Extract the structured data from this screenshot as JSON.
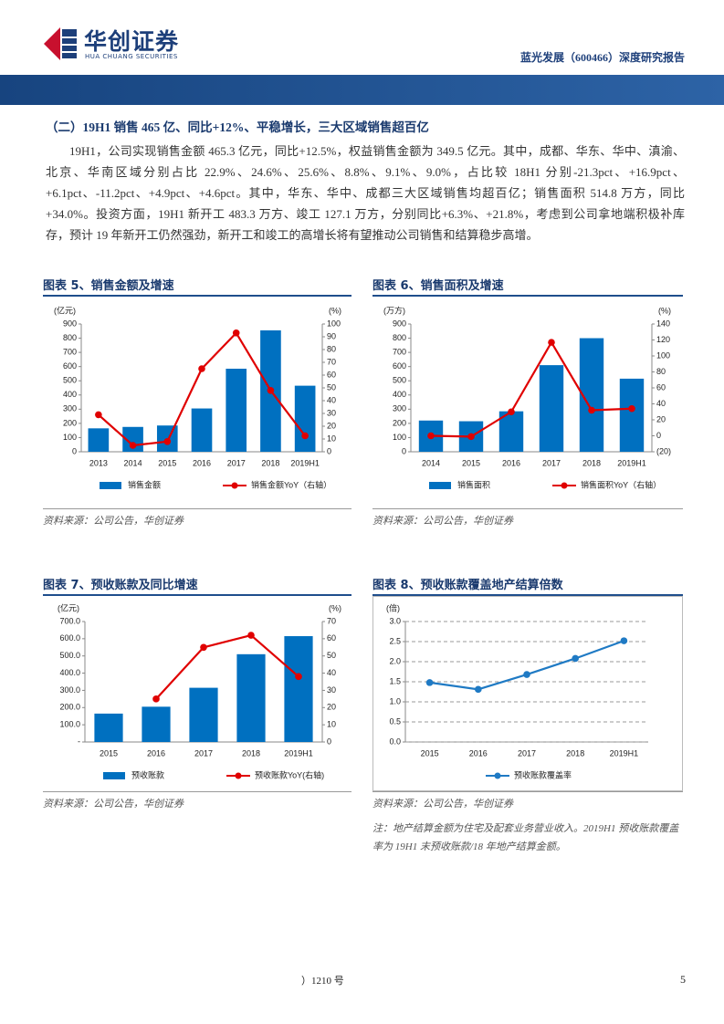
{
  "header": {
    "logo_name": "华创证券",
    "logo_english": "HUA CHUANG SECURITIES",
    "report_title": "蓝光发展（600466）深度研究报告"
  },
  "section": {
    "heading": "（二）19H1 销售 465 亿、同比+12%、平稳增长，三大区域销售超百亿",
    "paragraph": "19H1，公司实现销售金额 465.3 亿元，同比+12.5%，权益销售金额为 349.5 亿元。其中，成都、华东、华中、滇渝、北京、华南区域分别占比 22.9%、24.6%、25.6%、8.8%、9.1%、9.0%，占比较 18H1 分别-21.3pct、+16.9pct、+6.1pct、-11.2pct、+4.9pct、+4.6pct。其中，华东、华中、成都三大区域销售均超百亿；销售面积 514.8 万方，同比+34.0%。投资方面，19H1 新开工 483.3 万方、竣工 127.1 万方，分别同比+6.3%、+21.8%，考虑到公司拿地端积极补库存，预计 19 年新开工仍然强劲，新开工和竣工的高增长将有望推动公司销售和结算稳步高增。"
  },
  "chart_data": [
    {
      "type": "combo",
      "title": "图表 5、销售金额及增速",
      "y_unit": "(亿元)",
      "y2_unit": "(%)",
      "categories": [
        "2013",
        "2014",
        "2015",
        "2016",
        "2017",
        "2018",
        "2019H1"
      ],
      "series": [
        {
          "name": "销售金额",
          "color": "#0070c0",
          "type": "bar",
          "values": [
            165,
            175,
            185,
            305,
            585,
            855,
            465.3
          ]
        },
        {
          "name": "销售金额YoY（右轴）",
          "color": "#e00000",
          "type": "line",
          "axis": "y2",
          "values": [
            29,
            5,
            8,
            65,
            93,
            48,
            12.5
          ]
        }
      ],
      "ylim": [
        0,
        900
      ],
      "yticks": [
        0,
        100,
        200,
        300,
        400,
        500,
        600,
        700,
        800,
        900
      ],
      "y2lim": [
        0,
        100
      ],
      "y2ticks": [
        0,
        10,
        20,
        30,
        40,
        50,
        60,
        70,
        80,
        90,
        100
      ],
      "grid": false,
      "source": "资料来源：公司公告，华创证券"
    },
    {
      "type": "combo",
      "title": "图表 6、销售面积及增速",
      "y_unit": "(万方)",
      "y2_unit": "(%)",
      "categories": [
        "2014",
        "2015",
        "2016",
        "2017",
        "2018",
        "2019H1"
      ],
      "series": [
        {
          "name": "销售面积",
          "color": "#0070c0",
          "type": "bar",
          "values": [
            220,
            215,
            285,
            610,
            800,
            514.8
          ]
        },
        {
          "name": "销售面积YoY（右轴）",
          "color": "#e00000",
          "type": "line",
          "axis": "y2",
          "values": [
            0,
            -1,
            30,
            117,
            32,
            34.0
          ]
        }
      ],
      "ylim": [
        0,
        900
      ],
      "yticks": [
        0,
        100,
        200,
        300,
        400,
        500,
        600,
        700,
        800,
        900
      ],
      "y2lim": [
        -20,
        140
      ],
      "y2ticks": [
        {
          "value": -20,
          "label": "(20)"
        },
        0,
        20,
        40,
        60,
        80,
        100,
        120,
        140
      ],
      "grid": false,
      "source": "资料来源：公司公告，华创证券"
    },
    {
      "type": "combo",
      "title": "图表 7、预收账款及同比增速",
      "y_unit": "(亿元)",
      "y2_unit": "(%)",
      "categories": [
        "2015",
        "2016",
        "2017",
        "2018",
        "2019H1"
      ],
      "series": [
        {
          "name": "预收账款",
          "color": "#0070c0",
          "type": "bar",
          "values": [
            165,
            205,
            315,
            510,
            615
          ]
        },
        {
          "name": "预收账款YoY(右轴)",
          "color": "#e00000",
          "type": "line",
          "axis": "y2",
          "values": [
            null,
            25,
            55,
            62,
            38
          ]
        }
      ],
      "ylim": [
        0,
        700
      ],
      "yticks": [
        {
          "value": 0,
          "label": "-"
        },
        {
          "value": 100,
          "label": "100.0"
        },
        {
          "value": 200,
          "label": "200.0"
        },
        {
          "value": 300,
          "label": "300.0"
        },
        {
          "value": 400,
          "label": "400.0"
        },
        {
          "value": 500,
          "label": "500.0"
        },
        {
          "value": 600,
          "label": "600.0"
        },
        {
          "value": 700,
          "label": "700.0"
        }
      ],
      "y2lim": [
        0,
        70
      ],
      "y2ticks": [
        0,
        10,
        20,
        30,
        40,
        50,
        60,
        70
      ],
      "grid": false,
      "source": "资料来源：公司公告，华创证券"
    },
    {
      "type": "line",
      "title": "图表 8、预收账款覆盖地产结算倍数",
      "y_unit": "(倍)",
      "categories": [
        "2015",
        "2016",
        "2017",
        "2018",
        "2019H1"
      ],
      "series": [
        {
          "name": "预收账款覆盖率",
          "color": "#1f7ac4",
          "type": "line",
          "values": [
            1.48,
            1.31,
            1.68,
            2.08,
            2.52
          ]
        }
      ],
      "ylim": [
        0,
        3
      ],
      "yticks": [
        {
          "value": 0,
          "label": "0.0"
        },
        0.5,
        {
          "value": 1,
          "label": "1.0"
        },
        1.5,
        {
          "value": 2,
          "label": "2.0"
        },
        2.5,
        {
          "value": 3,
          "label": "3.0"
        }
      ],
      "grid": true,
      "source": "资料来源：公司公告，华创证券",
      "note": "注：地产结算金额为住宅及配套业务营业收入。2019H1 预收账款覆盖率为 19H1 末预收账款/18 年地产结算金额。"
    }
  ],
  "footer": {
    "left": "）1210 号",
    "page": "5"
  }
}
